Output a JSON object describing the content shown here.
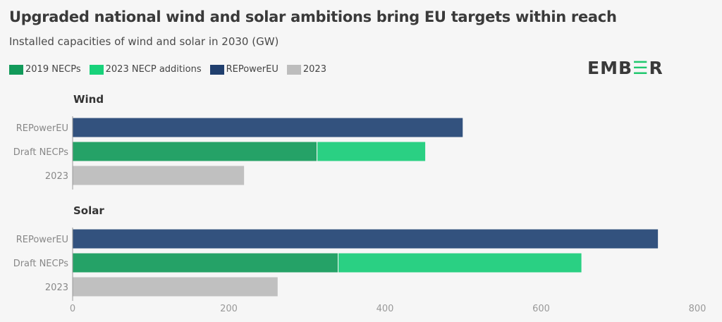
{
  "title": "Upgraded national wind and solar ambitions bring EU targets within reach",
  "subtitle": "Installed capacities of wind and solar in 2030 (GW)",
  "logo": "EMBER",
  "colors": {
    "necp2019": "#25a267",
    "necp2023": "#2ad083",
    "repower": "#33527e",
    "y2023": "#c0c0c0"
  },
  "chart_data": {
    "type": "bar",
    "orientation": "horizontal",
    "stacked": true,
    "legend": [
      {
        "name": "2019 NECPs",
        "color": "#129a5a"
      },
      {
        "name": "2023 NECP additions",
        "color": "#18d27a"
      },
      {
        "name": "REPowerEU",
        "color": "#203f6e"
      },
      {
        "name": "2023",
        "color": "#bdbdbd"
      }
    ],
    "legend_position": "top-left",
    "xlim": [
      0,
      800
    ],
    "xticks": [
      "0",
      "200",
      "400",
      "600",
      "800"
    ],
    "grid": false,
    "panels": [
      {
        "title": "Wind",
        "categories": [
          "REPowerEU",
          "Draft NECPs",
          "2023"
        ],
        "bars": [
          {
            "category": "REPowerEU",
            "segments": [
              {
                "series": "REPowerEU",
                "value": 500
              }
            ]
          },
          {
            "category": "Draft NECPs",
            "segments": [
              {
                "series": "2019 NECPs",
                "value": 313
              },
              {
                "series": "2023 NECP additions",
                "value": 139
              }
            ]
          },
          {
            "category": "2023",
            "segments": [
              {
                "series": "2023",
                "value": 220
              }
            ]
          }
        ]
      },
      {
        "title": "Solar",
        "categories": [
          "REPowerEU",
          "Draft NECPs",
          "2023"
        ],
        "bars": [
          {
            "category": "REPowerEU",
            "segments": [
              {
                "series": "REPowerEU",
                "value": 750
              }
            ]
          },
          {
            "category": "Draft NECPs",
            "segments": [
              {
                "series": "2019 NECPs",
                "value": 340
              },
              {
                "series": "2023 NECP additions",
                "value": 312
              }
            ]
          },
          {
            "category": "2023",
            "segments": [
              {
                "series": "2023",
                "value": 263
              }
            ]
          }
        ]
      }
    ]
  }
}
